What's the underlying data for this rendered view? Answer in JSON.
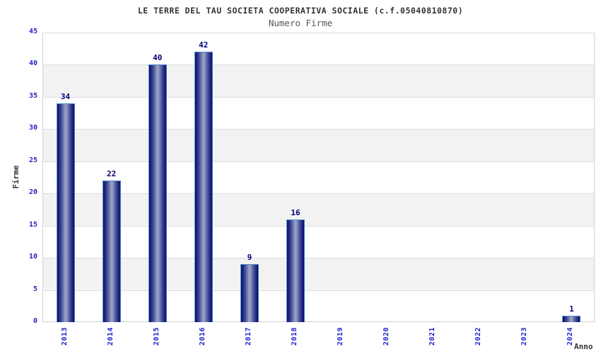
{
  "chart_data": {
    "type": "bar",
    "title": "LE TERRE DEL TAU SOCIETA COOPERATIVA SOCIALE (c.f.05040810870)",
    "subtitle": "Numero Firme",
    "xlabel": "Anno",
    "ylabel": "Firme",
    "categories": [
      "2013",
      "2014",
      "2015",
      "2016",
      "2017",
      "2018",
      "2019",
      "2020",
      "2021",
      "2022",
      "2023",
      "2024"
    ],
    "values": [
      34,
      22,
      40,
      42,
      9,
      16,
      0,
      0,
      0,
      0,
      0,
      1
    ],
    "ylim": [
      0,
      45
    ],
    "ytick_step": 5,
    "yticks": [
      0,
      5,
      10,
      15,
      20,
      25,
      30,
      35,
      40,
      45
    ],
    "legend": "none",
    "grid": "horizontal-bands-every-5",
    "colors": {
      "bar_dark": "#0d0d6b",
      "bar_light": "#97a0c6",
      "bar_cap_border": "#4a90c8",
      "tick_label": "#2222cc",
      "value_label": "#00007a",
      "band_gray": "#f2f2f2",
      "band_white": "#ffffff",
      "gridline": "#dcdcdc",
      "axis_title": "#333333",
      "title_text": "#333333",
      "subtitle_text": "#555555"
    }
  }
}
